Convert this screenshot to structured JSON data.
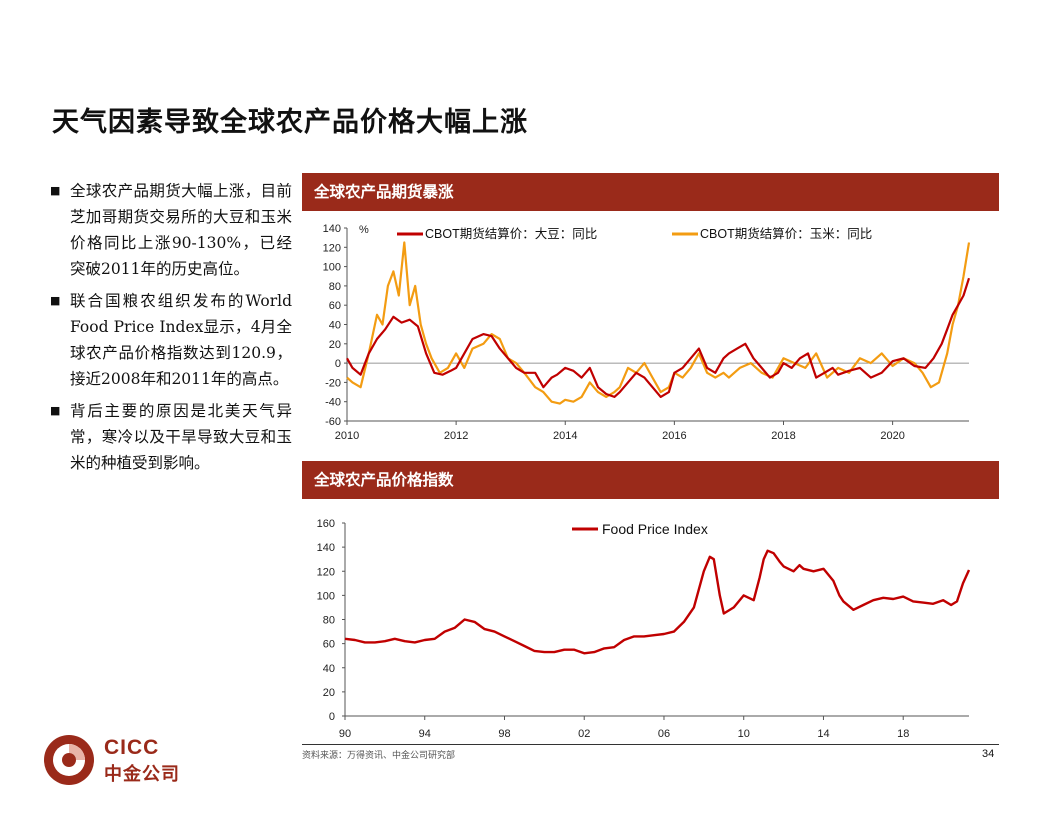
{
  "page": {
    "title": "天气因素导致全球农产品价格大幅上涨",
    "source": "资料来源：万得资讯、中金公司研究部",
    "page_number": "34"
  },
  "bullets": [
    "全球农产品期货大幅上涨，目前芝加哥期货交易所的大豆和玉米价格同比上涨90-130%，已经突破2011年的历史高位。",
    "联合国粮农组织发布的World Food Price Index显示，4月全球农产品价格指数达到120.9，接近2008年和2011年的高点。",
    "背后主要的原因是北美天气异常，寒冷以及干旱导致大豆和玉米的种植受到影响。"
  ],
  "logo": {
    "en": "CICC",
    "cn": "中金公司"
  },
  "colors": {
    "bar": "#9a2a1a",
    "soy": "#c00000",
    "corn": "#f39c12",
    "fpi": "#c00000"
  },
  "chart_data": [
    {
      "type": "line",
      "section_title": "全球农产品期货暴涨",
      "ylabel": "%",
      "ylim": [
        -60,
        140
      ],
      "yticks": [
        "140",
        "120",
        "100",
        "80",
        "60",
        "40",
        "20",
        "0",
        "-20",
        "-40",
        "-60"
      ],
      "xticks": [
        "2010",
        "2012",
        "2014",
        "2016",
        "2018",
        "2020"
      ],
      "xrange": [
        2010.0,
        2021.4
      ],
      "series": [
        {
          "name": "CBOT期货结算价：大豆：同比",
          "x": [
            2010.0,
            2010.1,
            2010.25,
            2010.4,
            2010.55,
            2010.7,
            2010.85,
            2011.0,
            2011.15,
            2011.3,
            2011.45,
            2011.6,
            2011.75,
            2011.9,
            2012.0,
            2012.15,
            2012.3,
            2012.5,
            2012.65,
            2012.8,
            2012.95,
            2013.1,
            2013.25,
            2013.45,
            2013.6,
            2013.75,
            2013.85,
            2014.0,
            2014.15,
            2014.3,
            2014.45,
            2014.6,
            2014.75,
            2014.9,
            2015.0,
            2015.15,
            2015.3,
            2015.45,
            2015.6,
            2015.75,
            2015.9,
            2016.0,
            2016.15,
            2016.3,
            2016.45,
            2016.6,
            2016.75,
            2016.9,
            2017.0,
            2017.15,
            2017.3,
            2017.45,
            2017.6,
            2017.75,
            2017.9,
            2018.0,
            2018.15,
            2018.3,
            2018.45,
            2018.6,
            2018.75,
            2018.9,
            2019.0,
            2019.2,
            2019.4,
            2019.6,
            2019.8,
            2020.0,
            2020.2,
            2020.4,
            2020.6,
            2020.75,
            2020.9,
            2021.0,
            2021.1,
            2021.2,
            2021.3,
            2021.4
          ],
          "values": [
            5,
            -5,
            -12,
            10,
            25,
            35,
            48,
            42,
            45,
            38,
            10,
            -10,
            -12,
            -8,
            -5,
            10,
            25,
            30,
            28,
            15,
            5,
            -5,
            -10,
            -10,
            -25,
            -15,
            -12,
            -5,
            -8,
            -15,
            -5,
            -25,
            -32,
            -35,
            -30,
            -20,
            -10,
            -15,
            -25,
            -35,
            -30,
            -10,
            -5,
            5,
            15,
            -5,
            -10,
            5,
            10,
            15,
            20,
            5,
            -5,
            -15,
            -10,
            0,
            -5,
            5,
            10,
            -15,
            -10,
            -5,
            -12,
            -8,
            -5,
            -15,
            -10,
            2,
            5,
            -3,
            -5,
            5,
            20,
            35,
            50,
            60,
            70,
            88
          ]
        },
        {
          "name": "CBOT期货结算价：玉米：同比",
          "x": [
            2010.0,
            2010.1,
            2010.25,
            2010.4,
            2010.55,
            2010.65,
            2010.75,
            2010.85,
            2010.95,
            2011.05,
            2011.15,
            2011.25,
            2011.35,
            2011.45,
            2011.55,
            2011.7,
            2011.85,
            2012.0,
            2012.15,
            2012.3,
            2012.5,
            2012.65,
            2012.8,
            2012.95,
            2013.1,
            2013.25,
            2013.45,
            2013.6,
            2013.75,
            2013.9,
            2014.0,
            2014.15,
            2014.3,
            2014.45,
            2014.6,
            2014.75,
            2014.9,
            2015.0,
            2015.15,
            2015.3,
            2015.45,
            2015.6,
            2015.75,
            2015.9,
            2016.0,
            2016.15,
            2016.3,
            2016.45,
            2016.6,
            2016.75,
            2016.9,
            2017.0,
            2017.2,
            2017.4,
            2017.6,
            2017.8,
            2018.0,
            2018.2,
            2018.4,
            2018.6,
            2018.8,
            2019.0,
            2019.2,
            2019.4,
            2019.6,
            2019.8,
            2020.0,
            2020.2,
            2020.4,
            2020.55,
            2020.7,
            2020.85,
            2021.0,
            2021.1,
            2021.2,
            2021.3,
            2021.4
          ],
          "values": [
            -15,
            -20,
            -25,
            10,
            50,
            40,
            80,
            95,
            70,
            125,
            60,
            80,
            40,
            20,
            5,
            -10,
            -5,
            10,
            -5,
            15,
            20,
            30,
            25,
            5,
            0,
            -10,
            -25,
            -30,
            -40,
            -42,
            -38,
            -40,
            -35,
            -20,
            -30,
            -35,
            -30,
            -25,
            -5,
            -10,
            0,
            -15,
            -30,
            -25,
            -10,
            -15,
            -5,
            10,
            -10,
            -15,
            -10,
            -15,
            -5,
            0,
            -10,
            -15,
            5,
            0,
            -5,
            10,
            -15,
            -5,
            -10,
            5,
            0,
            10,
            -3,
            5,
            0,
            -10,
            -25,
            -20,
            10,
            40,
            60,
            90,
            125
          ]
        }
      ]
    },
    {
      "type": "line",
      "section_title": "全球农产品价格指数",
      "ylim": [
        0,
        160
      ],
      "yticks": [
        "160",
        "140",
        "120",
        "100",
        "80",
        "60",
        "40",
        "20",
        "0"
      ],
      "xticks": [
        "90",
        "94",
        "98",
        "02",
        "06",
        "10",
        "14",
        "18"
      ],
      "xrange": [
        1990.0,
        2021.3
      ],
      "series": [
        {
          "name": "Food Price Index",
          "x": [
            1990.0,
            1990.5,
            1991.0,
            1991.5,
            1992.0,
            1992.5,
            1993.0,
            1993.5,
            1994.0,
            1994.5,
            1995.0,
            1995.5,
            1996.0,
            1996.5,
            1997.0,
            1997.5,
            1998.0,
            1998.5,
            1999.0,
            1999.5,
            2000.0,
            2000.5,
            2001.0,
            2001.5,
            2002.0,
            2002.5,
            2003.0,
            2003.5,
            2004.0,
            2004.5,
            2005.0,
            2005.5,
            2006.0,
            2006.5,
            2007.0,
            2007.5,
            2008.0,
            2008.3,
            2008.5,
            2008.8,
            2009.0,
            2009.5,
            2010.0,
            2010.5,
            2010.8,
            2011.0,
            2011.2,
            2011.5,
            2011.8,
            2012.0,
            2012.5,
            2012.8,
            2013.0,
            2013.5,
            2014.0,
            2014.5,
            2014.8,
            2015.0,
            2015.5,
            2016.0,
            2016.5,
            2017.0,
            2017.5,
            2018.0,
            2018.5,
            2019.0,
            2019.5,
            2020.0,
            2020.4,
            2020.7,
            2021.0,
            2021.3
          ],
          "values": [
            64,
            63,
            61,
            61,
            62,
            64,
            62,
            61,
            63,
            64,
            70,
            73,
            80,
            78,
            72,
            70,
            66,
            62,
            58,
            54,
            53,
            53,
            55,
            55,
            52,
            53,
            56,
            57,
            63,
            66,
            66,
            67,
            68,
            70,
            78,
            90,
            120,
            132,
            130,
            100,
            85,
            90,
            100,
            96,
            115,
            130,
            137,
            135,
            128,
            124,
            120,
            125,
            122,
            120,
            122,
            112,
            100,
            95,
            88,
            92,
            96,
            98,
            97,
            99,
            95,
            94,
            93,
            96,
            92,
            95,
            110,
            121
          ]
        }
      ]
    }
  ]
}
